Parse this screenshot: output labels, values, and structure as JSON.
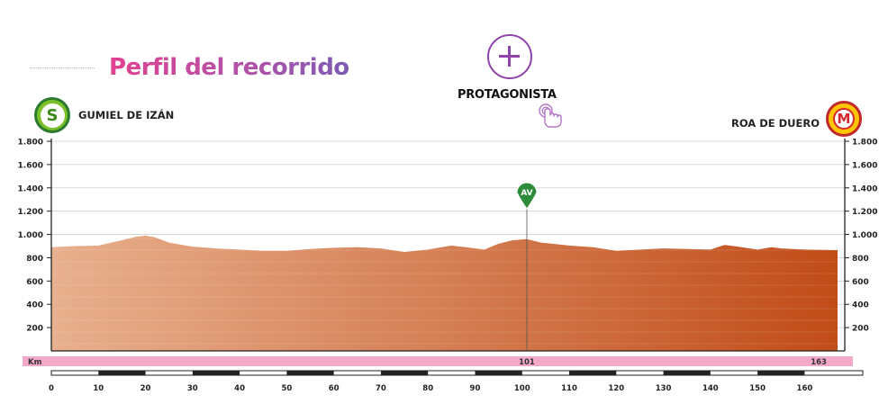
{
  "header": {
    "title": "Perfil del recorrido",
    "protagonist_label": "PROTAGONISTA",
    "protagonist_icon": "plus-circle-icon",
    "tap_icon": "tap-hand-icon"
  },
  "start": {
    "badge": "S",
    "name": "GUMIEL DE IZÁN",
    "color": "#7bbf2a"
  },
  "finish": {
    "badge": "M",
    "name": "ROA DE DUERO",
    "color": "#d8262d"
  },
  "colors": {
    "profile_start": "#e8b08e",
    "profile_end": "#c14c18",
    "km_bar": "#f4a9c9",
    "sprint_marker": "#2e8b3a"
  },
  "chart_data": {
    "type": "area",
    "title": "Perfil del recorrido",
    "xlabel": "Km",
    "ylabel": "",
    "xlim": [
      0,
      167
    ],
    "ylim": [
      0,
      1800
    ],
    "y_ticks": [
      200,
      400,
      600,
      800,
      1000,
      1200,
      1400,
      1600,
      1800
    ],
    "y_tick_labels": [
      "200",
      "400",
      "600",
      "800",
      "1.000",
      "1.200",
      "1.400",
      "1.600",
      "1.800"
    ],
    "x_ticks": [
      0,
      10,
      20,
      30,
      40,
      50,
      60,
      70,
      80,
      90,
      100,
      110,
      120,
      130,
      140,
      150,
      160
    ],
    "grid": true,
    "distance_markers": [
      {
        "km": 101,
        "label": "101"
      },
      {
        "km": 163,
        "label": "163"
      }
    ],
    "waypoints": [
      {
        "km": 101,
        "label": "AV"
      }
    ],
    "series": [
      {
        "x": [
          0,
          5,
          10,
          15,
          18,
          20,
          22,
          25,
          30,
          35,
          40,
          45,
          50,
          55,
          60,
          65,
          70,
          75,
          80,
          85,
          88,
          92,
          95,
          98,
          101,
          104,
          110,
          115,
          120,
          125,
          130,
          135,
          140,
          143,
          145,
          150,
          153,
          155,
          160,
          167
        ],
        "y": [
          890,
          900,
          905,
          950,
          980,
          990,
          975,
          930,
          895,
          880,
          870,
          860,
          860,
          875,
          885,
          890,
          880,
          850,
          870,
          905,
          890,
          870,
          920,
          950,
          960,
          930,
          905,
          890,
          860,
          870,
          880,
          875,
          870,
          910,
          900,
          870,
          890,
          880,
          870,
          865
        ]
      }
    ]
  }
}
